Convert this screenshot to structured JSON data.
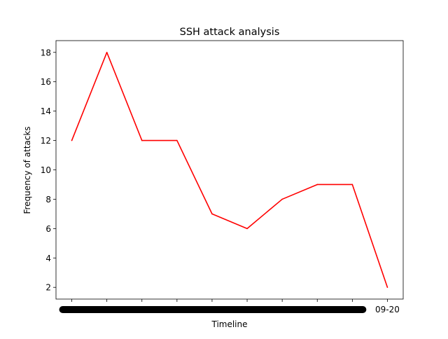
{
  "chart_data": {
    "type": "line",
    "title": "SSH attack analysis",
    "xlabel": "Timeline",
    "ylabel": "Frequency of attacks",
    "x": [
      "",
      "",
      "",
      "",
      "",
      "",
      "",
      "",
      "",
      "09-20"
    ],
    "series": [
      {
        "values": [
          12,
          18,
          12,
          12,
          7,
          6,
          8,
          9,
          9,
          2
        ],
        "color": "#ff0000"
      }
    ],
    "yticks": [
      2,
      4,
      6,
      8,
      10,
      12,
      14,
      16,
      18
    ],
    "ylim": [
      1.2,
      18.8
    ],
    "grid": false,
    "legend": "none",
    "overlapping_tick_labels_color": "#000000"
  }
}
